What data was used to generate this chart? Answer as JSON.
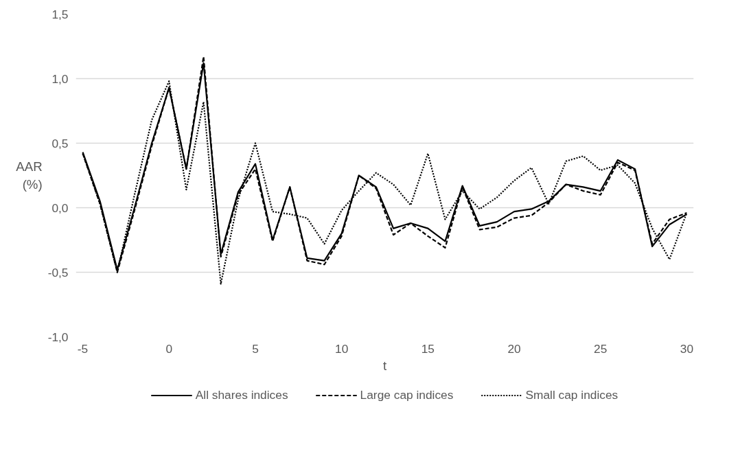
{
  "chart_data": {
    "type": "line",
    "xlabel": "t",
    "ylabel": "AAR\n(%)",
    "x": [
      -5,
      -4,
      -3,
      -2,
      -1,
      0,
      1,
      2,
      3,
      4,
      5,
      6,
      7,
      8,
      9,
      10,
      11,
      12,
      13,
      14,
      15,
      16,
      17,
      18,
      19,
      20,
      21,
      22,
      23,
      24,
      25,
      26,
      27,
      28,
      29,
      30
    ],
    "series": [
      {
        "name": "All shares indices",
        "color": "#000000",
        "line_style": "solid",
        "values": [
          0.43,
          0.05,
          -0.48,
          0.0,
          0.5,
          0.93,
          0.3,
          1.12,
          -0.36,
          0.12,
          0.34,
          -0.25,
          0.16,
          -0.39,
          -0.41,
          -0.2,
          0.25,
          0.16,
          -0.16,
          -0.12,
          -0.16,
          -0.26,
          0.17,
          -0.14,
          -0.11,
          -0.03,
          -0.01,
          0.05,
          0.18,
          0.16,
          0.13,
          0.37,
          0.3,
          -0.3,
          -0.13,
          -0.05
        ]
      },
      {
        "name": "Large cap indices",
        "color": "#000000",
        "line_style": "dashed",
        "values": [
          0.42,
          0.03,
          -0.5,
          -0.02,
          0.48,
          0.93,
          0.3,
          1.17,
          -0.38,
          0.1,
          0.3,
          -0.26,
          0.16,
          -0.41,
          -0.44,
          -0.22,
          0.25,
          0.15,
          -0.21,
          -0.12,
          -0.22,
          -0.31,
          0.16,
          -0.17,
          -0.15,
          -0.08,
          -0.06,
          0.04,
          0.18,
          0.13,
          0.1,
          0.35,
          0.29,
          -0.28,
          -0.09,
          -0.04
        ]
      },
      {
        "name": "Small cap indices",
        "color": "#000000",
        "line_style": "dotted",
        "values": [
          0.42,
          0.03,
          -0.5,
          0.1,
          0.68,
          0.98,
          0.14,
          0.82,
          -0.59,
          0.06,
          0.5,
          -0.03,
          -0.05,
          -0.08,
          -0.28,
          -0.02,
          0.13,
          0.27,
          0.18,
          0.02,
          0.42,
          -0.09,
          0.13,
          -0.01,
          0.08,
          0.21,
          0.31,
          0.03,
          0.36,
          0.4,
          0.29,
          0.33,
          0.19,
          -0.16,
          -0.4,
          -0.04
        ]
      }
    ],
    "xlim": [
      -5.4,
      30.4
    ],
    "ylim": [
      -1.0,
      1.5
    ],
    "xticks": [
      -5,
      0,
      5,
      10,
      15,
      20,
      25,
      30
    ],
    "yticks": [
      {
        "value": -1.0,
        "label": "-1,0"
      },
      {
        "value": -0.5,
        "label": "-0,5"
      },
      {
        "value": 0.0,
        "label": "0,0"
      },
      {
        "value": 0.5,
        "label": "0,5"
      },
      {
        "value": 1.0,
        "label": "1,0"
      },
      {
        "value": 1.5,
        "label": "1,5"
      }
    ],
    "grid": "y",
    "legend": "bottom"
  }
}
